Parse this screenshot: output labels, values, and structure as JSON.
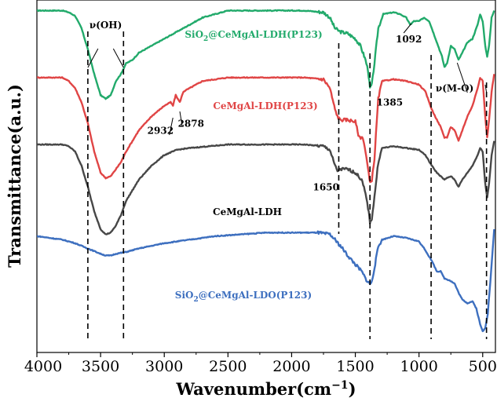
{
  "chart_data": {
    "type": "line",
    "xlabel": "Wavenumber(cm",
    "xlabel_exp": "−1",
    "xlabel_close": ")",
    "ylabel": "Transmittance(a.u.)",
    "xlim": [
      4000,
      400
    ],
    "x_reversed": true,
    "ylim": [
      0,
      100
    ],
    "y_ticks_shown": false,
    "x_ticks": [
      {
        "value": 4000,
        "label": "4000"
      },
      {
        "value": 3500,
        "label": "3500"
      },
      {
        "value": 3000,
        "label": "3000"
      },
      {
        "value": 2500,
        "label": "2500"
      },
      {
        "value": 2000,
        "label": "2000"
      },
      {
        "value": 1500,
        "label": "1500"
      },
      {
        "value": 1000,
        "label": "1000"
      },
      {
        "value": 500,
        "label": "500"
      }
    ],
    "series": [
      {
        "name": "SiO2@CeMgAl-LDH(P123)",
        "name_parts": [
          "SiO",
          "2",
          "@CeMgAl-LDH(P123)"
        ],
        "color": "#22aa6b",
        "points": [
          [
            4000,
            97
          ],
          [
            3800,
            97
          ],
          [
            3750,
            96.5
          ],
          [
            3700,
            95.5
          ],
          [
            3650,
            92
          ],
          [
            3600,
            86
          ],
          [
            3550,
            79
          ],
          [
            3500,
            73
          ],
          [
            3460,
            72
          ],
          [
            3420,
            73
          ],
          [
            3380,
            77
          ],
          [
            3340,
            79
          ],
          [
            3300,
            82
          ],
          [
            3250,
            83
          ],
          [
            3200,
            85
          ],
          [
            3100,
            87
          ],
          [
            3000,
            89
          ],
          [
            2900,
            91
          ],
          [
            2800,
            93
          ],
          [
            2700,
            95
          ],
          [
            2500,
            97
          ],
          [
            2200,
            97
          ],
          [
            1900,
            97
          ],
          [
            1750,
            96.5
          ],
          [
            1700,
            95
          ],
          [
            1660,
            92
          ],
          [
            1640,
            91.5
          ],
          [
            1620,
            91
          ],
          [
            1560,
            90.5
          ],
          [
            1500,
            89
          ],
          [
            1460,
            87
          ],
          [
            1420,
            83
          ],
          [
            1400,
            80
          ],
          [
            1385,
            75
          ],
          [
            1370,
            76
          ],
          [
            1350,
            82
          ],
          [
            1320,
            92
          ],
          [
            1280,
            96
          ],
          [
            1200,
            96.5
          ],
          [
            1150,
            96
          ],
          [
            1100,
            95
          ],
          [
            1070,
            93
          ],
          [
            1040,
            94
          ],
          [
            1000,
            94
          ],
          [
            960,
            95
          ],
          [
            920,
            94
          ],
          [
            880,
            90
          ],
          [
            850,
            87
          ],
          [
            820,
            84
          ],
          [
            800,
            81
          ],
          [
            780,
            82
          ],
          [
            750,
            87
          ],
          [
            720,
            86
          ],
          [
            690,
            83
          ],
          [
            660,
            85
          ],
          [
            620,
            88
          ],
          [
            580,
            89
          ],
          [
            540,
            93
          ],
          [
            520,
            96
          ],
          [
            500,
            94
          ],
          [
            480,
            87
          ],
          [
            465,
            84
          ],
          [
            450,
            87
          ],
          [
            430,
            95
          ],
          [
            410,
            97
          ]
        ]
      },
      {
        "name": "CeMgAl-LDH(P123)",
        "color": "#e04545",
        "points": [
          [
            4000,
            78
          ],
          [
            3800,
            78
          ],
          [
            3750,
            77
          ],
          [
            3700,
            75
          ],
          [
            3650,
            71
          ],
          [
            3600,
            65
          ],
          [
            3550,
            57
          ],
          [
            3500,
            51
          ],
          [
            3460,
            49.5
          ],
          [
            3420,
            50
          ],
          [
            3380,
            52
          ],
          [
            3340,
            54
          ],
          [
            3300,
            57
          ],
          [
            3250,
            60
          ],
          [
            3200,
            63
          ],
          [
            3100,
            67
          ],
          [
            3000,
            70
          ],
          [
            2950,
            71
          ],
          [
            2932,
            70
          ],
          [
            2910,
            73
          ],
          [
            2878,
            71
          ],
          [
            2850,
            74
          ],
          [
            2800,
            75
          ],
          [
            2700,
            77
          ],
          [
            2500,
            78
          ],
          [
            2200,
            78
          ],
          [
            1900,
            78
          ],
          [
            1750,
            77.5
          ],
          [
            1700,
            75
          ],
          [
            1660,
            69
          ],
          [
            1640,
            67
          ],
          [
            1620,
            66
          ],
          [
            1560,
            66
          ],
          [
            1500,
            65.5
          ],
          [
            1470,
            61
          ],
          [
            1440,
            61
          ],
          [
            1420,
            57
          ],
          [
            1400,
            52
          ],
          [
            1385,
            48
          ],
          [
            1370,
            49
          ],
          [
            1350,
            55
          ],
          [
            1320,
            72
          ],
          [
            1290,
            77
          ],
          [
            1200,
            77.5
          ],
          [
            1100,
            77
          ],
          [
            1000,
            76
          ],
          [
            950,
            74
          ],
          [
            900,
            69
          ],
          [
            860,
            66
          ],
          [
            830,
            64
          ],
          [
            800,
            61
          ],
          [
            780,
            61
          ],
          [
            750,
            64
          ],
          [
            720,
            63
          ],
          [
            690,
            60
          ],
          [
            660,
            63
          ],
          [
            620,
            67
          ],
          [
            580,
            70
          ],
          [
            540,
            75
          ],
          [
            520,
            78
          ],
          [
            500,
            77
          ],
          [
            480,
            67
          ],
          [
            465,
            61
          ],
          [
            450,
            66
          ],
          [
            430,
            74
          ],
          [
            410,
            79
          ]
        ]
      },
      {
        "name": "CeMgAl-LDH",
        "color": "#474747",
        "points": [
          [
            4000,
            59
          ],
          [
            3800,
            59
          ],
          [
            3750,
            58.5
          ],
          [
            3700,
            57
          ],
          [
            3650,
            53
          ],
          [
            3600,
            47
          ],
          [
            3550,
            40
          ],
          [
            3500,
            35
          ],
          [
            3460,
            33.5
          ],
          [
            3420,
            34
          ],
          [
            3380,
            36
          ],
          [
            3340,
            39
          ],
          [
            3300,
            43
          ],
          [
            3250,
            46
          ],
          [
            3200,
            49
          ],
          [
            3100,
            53
          ],
          [
            3000,
            56
          ],
          [
            2900,
            57.5
          ],
          [
            2800,
            58
          ],
          [
            2500,
            59
          ],
          [
            2200,
            59
          ],
          [
            1900,
            59
          ],
          [
            1750,
            58.5
          ],
          [
            1700,
            57.5
          ],
          [
            1660,
            53
          ],
          [
            1640,
            51.5
          ],
          [
            1620,
            52
          ],
          [
            1560,
            52
          ],
          [
            1500,
            51
          ],
          [
            1450,
            49
          ],
          [
            1420,
            45
          ],
          [
            1400,
            41
          ],
          [
            1385,
            37
          ],
          [
            1370,
            38
          ],
          [
            1350,
            44
          ],
          [
            1320,
            54
          ],
          [
            1290,
            58
          ],
          [
            1200,
            58.5
          ],
          [
            1100,
            58
          ],
          [
            1000,
            57.5
          ],
          [
            950,
            56
          ],
          [
            900,
            53
          ],
          [
            860,
            51
          ],
          [
            830,
            50
          ],
          [
            800,
            49
          ],
          [
            780,
            49.5
          ],
          [
            750,
            50
          ],
          [
            720,
            49
          ],
          [
            690,
            47
          ],
          [
            660,
            49
          ],
          [
            620,
            51
          ],
          [
            580,
            53
          ],
          [
            540,
            56
          ],
          [
            520,
            58
          ],
          [
            500,
            57
          ],
          [
            480,
            48
          ],
          [
            465,
            44
          ],
          [
            450,
            48
          ],
          [
            430,
            56
          ],
          [
            410,
            60
          ]
        ]
      },
      {
        "name": "SiO2@CeMgAl-LDO(P123)",
        "name_parts": [
          "SiO",
          "2",
          "@CeMgAl-LDO(P123)"
        ],
        "color": "#3d6fbf",
        "points": [
          [
            4000,
            33
          ],
          [
            3800,
            32
          ],
          [
            3700,
            31
          ],
          [
            3600,
            29.5
          ],
          [
            3500,
            28
          ],
          [
            3460,
            27.5
          ],
          [
            3420,
            27.5
          ],
          [
            3380,
            28
          ],
          [
            3300,
            28.5
          ],
          [
            3200,
            29.5
          ],
          [
            3000,
            31
          ],
          [
            2800,
            32
          ],
          [
            2600,
            33
          ],
          [
            2400,
            33.5
          ],
          [
            2200,
            34
          ],
          [
            2000,
            34
          ],
          [
            1800,
            34
          ],
          [
            1700,
            33.5
          ],
          [
            1660,
            32
          ],
          [
            1600,
            29.5
          ],
          [
            1560,
            27.5
          ],
          [
            1500,
            25
          ],
          [
            1450,
            23
          ],
          [
            1420,
            21
          ],
          [
            1400,
            20
          ],
          [
            1385,
            19.5
          ],
          [
            1370,
            20
          ],
          [
            1350,
            24
          ],
          [
            1320,
            30
          ],
          [
            1290,
            32
          ],
          [
            1200,
            33
          ],
          [
            1100,
            32.5
          ],
          [
            1000,
            31.5
          ],
          [
            950,
            29
          ],
          [
            900,
            26
          ],
          [
            860,
            23
          ],
          [
            830,
            23
          ],
          [
            800,
            21
          ],
          [
            760,
            20.5
          ],
          [
            720,
            19.5
          ],
          [
            690,
            17
          ],
          [
            660,
            15
          ],
          [
            620,
            14
          ],
          [
            580,
            14.5
          ],
          [
            550,
            12.5
          ],
          [
            520,
            8
          ],
          [
            500,
            6
          ],
          [
            480,
            7
          ],
          [
            460,
            11
          ],
          [
            440,
            20
          ],
          [
            420,
            30
          ],
          [
            410,
            35
          ]
        ]
      }
    ],
    "annotations": [
      {
        "text": "ν(OH)",
        "x": 3460,
        "y": 92
      },
      {
        "text": "2932",
        "x": 3030,
        "y": 62
      },
      {
        "text": "2878",
        "x": 2790,
        "y": 64
      },
      {
        "text": "1650",
        "x": 1730,
        "y": 46
      },
      {
        "text": "1385",
        "x": 1230,
        "y": 70
      },
      {
        "text": "1092",
        "x": 1080,
        "y": 88
      },
      {
        "text": "ν(M-O)",
        "x": 720,
        "y": 74
      }
    ],
    "dashed_lines_x": [
      3600,
      3320,
      1630,
      1385,
      905,
      470
    ]
  }
}
